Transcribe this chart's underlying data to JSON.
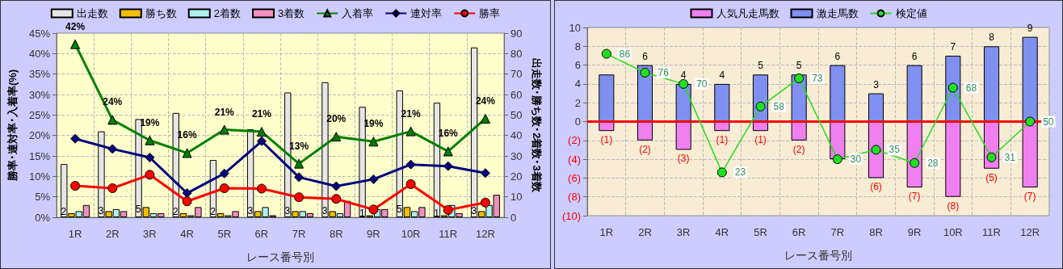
{
  "chart_data": [
    {
      "type": "bar",
      "xlabel": "レース番号別",
      "ylabel": "勝率･連対率･入着率(%)",
      "y2label": "出走数･勝ち数･2着数･3着数",
      "categories": [
        "1R",
        "2R",
        "3R",
        "4R",
        "5R",
        "6R",
        "7R",
        "8R",
        "9R",
        "10R",
        "11R",
        "12R"
      ],
      "series": [
        {
          "name": "出走数",
          "color": "#e6e6e6",
          "axis": "y2",
          "values": [
            26,
            42,
            48,
            51,
            28,
            43,
            61,
            66,
            54,
            62,
            56,
            83
          ]
        },
        {
          "name": "勝ち数",
          "color": "#f0c000",
          "axis": "y2",
          "values": [
            2,
            3,
            5,
            2,
            2,
            3,
            3,
            3,
            1,
            5,
            1,
            3
          ],
          "value_labels": [
            "2",
            "3",
            "5",
            "2",
            "2",
            "3",
            "3",
            "3",
            "1",
            "5",
            "1",
            "3"
          ]
        },
        {
          "name": "2着数",
          "color": "#b0f0f0",
          "axis": "y2",
          "values": [
            3,
            4,
            2,
            1,
            1,
            5,
            3,
            2,
            4,
            3,
            6,
            6
          ]
        },
        {
          "name": "3着数",
          "color": "#f090c0",
          "axis": "y2",
          "values": [
            6,
            3,
            2,
            5,
            3,
            1,
            2,
            8,
            4,
            5,
            2,
            11
          ]
        },
        {
          "name": "入着率",
          "type": "line",
          "marker": "triangle",
          "color": "#008000",
          "values": [
            42.3,
            23.8,
            18.8,
            15.7,
            21.4,
            20.9,
            13.1,
            19.7,
            18.5,
            21.0,
            16.1,
            24.1
          ],
          "value_labels": [
            "42%",
            "24%",
            "19%",
            "16%",
            "21%",
            "21%",
            "13%",
            "20%",
            "19%",
            "21%",
            "16%",
            "24%"
          ]
        },
        {
          "name": "連対率",
          "type": "line",
          "marker": "diamond",
          "color": "#000080",
          "values": [
            19.2,
            16.7,
            14.6,
            5.9,
            10.7,
            18.6,
            9.8,
            7.6,
            9.3,
            12.9,
            12.5,
            10.8
          ]
        },
        {
          "name": "勝率",
          "type": "line",
          "marker": "circle",
          "color": "#ff0000",
          "values": [
            7.7,
            7.1,
            10.4,
            3.9,
            7.1,
            7.0,
            4.9,
            4.5,
            1.9,
            8.1,
            1.8,
            3.6
          ]
        }
      ],
      "ylim": [
        0,
        45
      ],
      "yticks": [
        {
          "value": 0,
          "label": "0%"
        },
        {
          "value": 5,
          "label": "5%"
        },
        {
          "value": 10,
          "label": "10%"
        },
        {
          "value": 15,
          "label": "15%"
        },
        {
          "value": 20,
          "label": "20%"
        },
        {
          "value": 25,
          "label": "25%"
        },
        {
          "value": 30,
          "label": "30%"
        },
        {
          "value": 35,
          "label": "35%"
        },
        {
          "value": 40,
          "label": "40%"
        },
        {
          "value": 45,
          "label": "45%"
        }
      ],
      "y2lim": [
        0,
        90
      ],
      "y2ticks": [
        0,
        10,
        20,
        30,
        40,
        50,
        60,
        70,
        80,
        90
      ],
      "grid": true,
      "legend": "top"
    },
    {
      "type": "bar",
      "xlabel": "レース番号別",
      "categories": [
        "1R",
        "2R",
        "3R",
        "4R",
        "5R",
        "6R",
        "7R",
        "8R",
        "9R",
        "10R",
        "11R",
        "12R"
      ],
      "series": [
        {
          "name": "人気凡走馬数",
          "color": "#f080f0",
          "values": [
            -1,
            -2,
            -3,
            -1,
            -1,
            -2,
            -4,
            -6,
            -7,
            -8,
            -5,
            -7
          ],
          "value_labels": [
            "(1)",
            "(2)",
            "(3)",
            "(1)",
            "(1)",
            "(2)",
            null,
            "(6)",
            "(7)",
            "(8)",
            "(5)",
            "(7)"
          ]
        },
        {
          "name": "激走馬数",
          "color": "#8090f0",
          "values": [
            5,
            6,
            4,
            4,
            5,
            5,
            6,
            3,
            6,
            7,
            8,
            9
          ],
          "value_labels": [
            null,
            "6",
            "4",
            "4",
            "5",
            "5",
            "6",
            "3",
            "6",
            "7",
            "8",
            "9"
          ]
        },
        {
          "name": "検定値",
          "type": "line",
          "marker": "circle",
          "color": "#22dd22",
          "axis": "y2",
          "values": [
            86,
            76,
            70,
            23,
            58,
            73,
            30,
            35,
            28,
            68,
            31,
            50
          ],
          "value_labels": [
            "86",
            "76",
            "70",
            "23",
            "58",
            "73",
            "30",
            "35",
            "28",
            "68",
            "31",
            "50"
          ]
        }
      ],
      "stacked": true,
      "ylim": [
        -10,
        10
      ],
      "yticks": [
        {
          "value": -10,
          "label": "(10)"
        },
        {
          "value": -8,
          "label": "(8)"
        },
        {
          "value": -6,
          "label": "(6)"
        },
        {
          "value": -4,
          "label": "(4)"
        },
        {
          "value": -2,
          "label": "(2)"
        },
        0,
        2,
        4,
        6,
        8,
        10
      ],
      "y2lim": [
        0,
        100
      ],
      "ref_lines": [
        {
          "axis": "y",
          "value": 0,
          "color": "#ff0000"
        }
      ],
      "grid": true,
      "legend": "top"
    }
  ]
}
